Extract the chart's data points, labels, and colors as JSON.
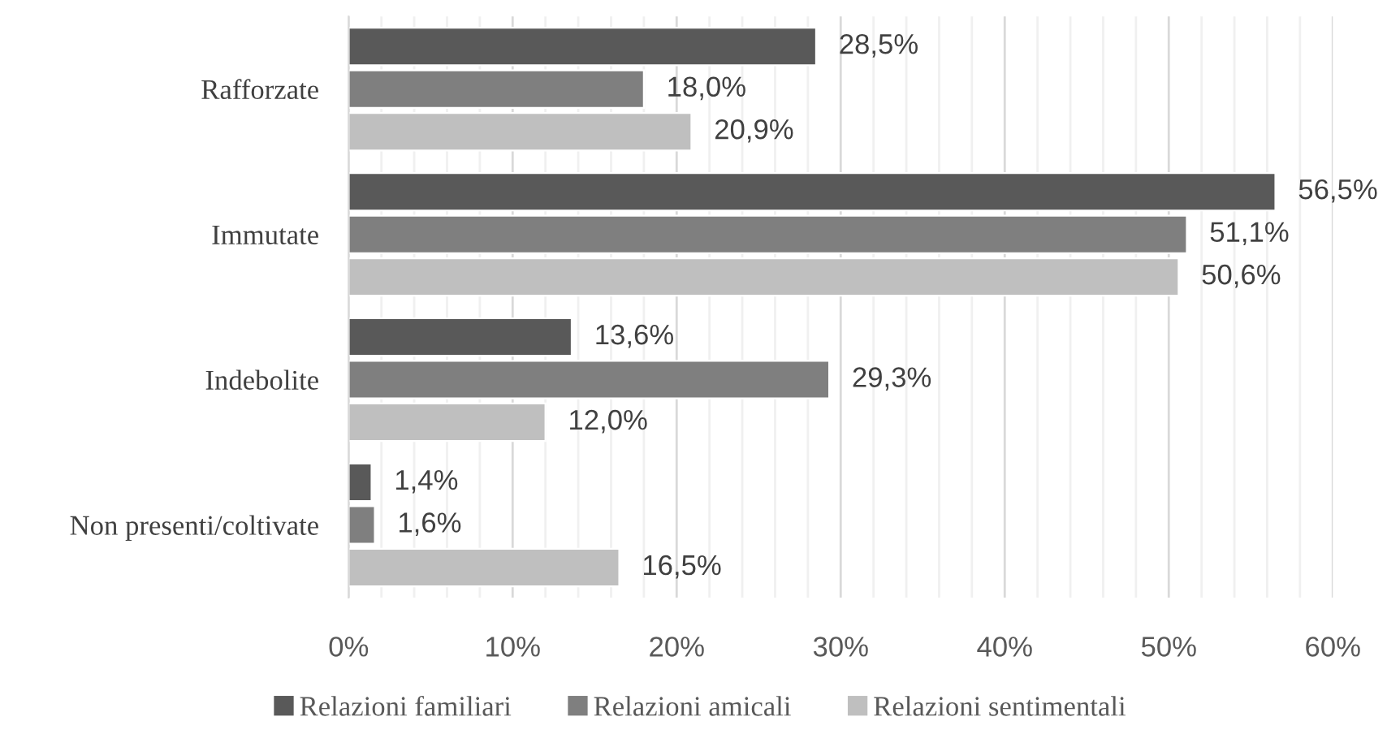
{
  "chart_data": {
    "type": "bar",
    "orientation": "horizontal",
    "categories": [
      "Rafforzate",
      "Immutate",
      "Indebolite",
      "Non presenti/coltivate"
    ],
    "series": [
      {
        "name": "Relazioni familiari",
        "color": "#595959",
        "values": [
          28.5,
          56.5,
          13.6,
          1.4
        ],
        "value_labels": [
          "28,5%",
          "56,5%",
          "13,6%",
          "1,4%"
        ]
      },
      {
        "name": "Relazioni amicali",
        "color": "#7f7f7f",
        "values": [
          18.0,
          51.1,
          29.3,
          1.6
        ],
        "value_labels": [
          "18,0%",
          "51,1%",
          "29,3%",
          "1,6%"
        ]
      },
      {
        "name": "Relazioni sentimentali",
        "color": "#bfbfbf",
        "values": [
          20.9,
          50.6,
          12.0,
          16.5
        ],
        "value_labels": [
          "20,9%",
          "50,6%",
          "12,0%",
          "16,5%"
        ]
      }
    ],
    "xlim": [
      0,
      60
    ],
    "xticks": [
      {
        "value": 0,
        "label": "0%"
      },
      {
        "value": 2,
        "label": null
      },
      {
        "value": 4,
        "label": null
      },
      {
        "value": 6,
        "label": null
      },
      {
        "value": 8,
        "label": null
      },
      {
        "value": 10,
        "label": "10%"
      },
      {
        "value": 12,
        "label": null
      },
      {
        "value": 14,
        "label": null
      },
      {
        "value": 16,
        "label": null
      },
      {
        "value": 18,
        "label": null
      },
      {
        "value": 20,
        "label": "20%"
      },
      {
        "value": 22,
        "label": null
      },
      {
        "value": 24,
        "label": null
      },
      {
        "value": 26,
        "label": null
      },
      {
        "value": 28,
        "label": null
      },
      {
        "value": 30,
        "label": "30%"
      },
      {
        "value": 32,
        "label": null
      },
      {
        "value": 34,
        "label": null
      },
      {
        "value": 36,
        "label": null
      },
      {
        "value": 38,
        "label": null
      },
      {
        "value": 40,
        "label": "40%"
      },
      {
        "value": 42,
        "label": null
      },
      {
        "value": 44,
        "label": null
      },
      {
        "value": 46,
        "label": null
      },
      {
        "value": 48,
        "label": null
      },
      {
        "value": 50,
        "label": "50%"
      },
      {
        "value": 52,
        "label": null
      },
      {
        "value": 54,
        "label": null
      },
      {
        "value": 56,
        "label": null
      },
      {
        "value": 58,
        "label": null
      },
      {
        "value": 60,
        "label": "60%"
      }
    ],
    "grid": "x",
    "legend": "bottom"
  }
}
